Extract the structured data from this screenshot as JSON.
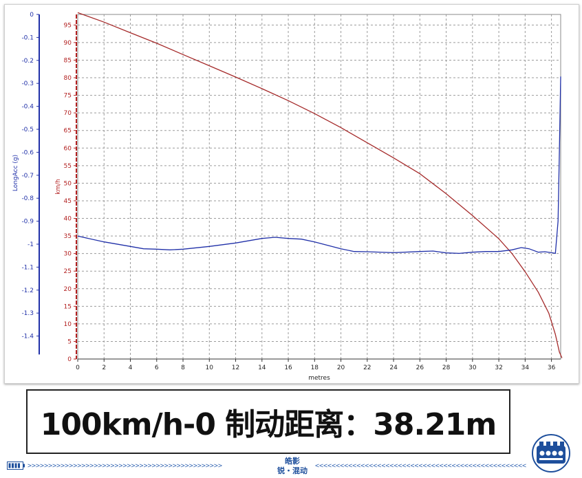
{
  "chart_data": {
    "type": "line",
    "xlabel": "metres",
    "x_ticks": [
      0,
      2,
      4,
      6,
      8,
      10,
      12,
      14,
      16,
      18,
      20,
      22,
      24,
      26,
      28,
      30,
      32,
      34,
      36
    ],
    "xlim": [
      0,
      36.7
    ],
    "left_axis": {
      "label": "LongAcc (g)",
      "ylim": [
        -1.5,
        0
      ],
      "ticks": [
        "0",
        "-0.1",
        "-0.2",
        "-0.3",
        "-0.4",
        "-0.5",
        "-0.6",
        "-0.7",
        "-0.8",
        "-0.9",
        "-1",
        "-1.1",
        "-1.2",
        "-1.3",
        "-1.4"
      ],
      "tick_values": [
        0,
        -0.1,
        -0.2,
        -0.3,
        -0.4,
        -0.5,
        -0.6,
        -0.7,
        -0.8,
        -0.9,
        -1,
        -1.1,
        -1.2,
        -1.3,
        -1.4
      ],
      "color": "#1f2fa8"
    },
    "right_axis": {
      "label": "km/h",
      "ylim": [
        0,
        98
      ],
      "ticks": [
        "0",
        "5",
        "10",
        "15",
        "20",
        "25",
        "30",
        "35",
        "40",
        "45",
        "50",
        "55",
        "60",
        "65",
        "70",
        "75",
        "80",
        "85",
        "90",
        "95"
      ],
      "tick_values": [
        0,
        5,
        10,
        15,
        20,
        25,
        30,
        35,
        40,
        45,
        50,
        55,
        60,
        65,
        70,
        75,
        80,
        85,
        90,
        95
      ],
      "color": "#b21f1f"
    },
    "grid": true,
    "series": [
      {
        "axis": "right",
        "color": "#a52a2a",
        "points": [
          [
            0,
            98.5
          ],
          [
            2,
            95.8
          ],
          [
            4,
            92.8
          ],
          [
            6,
            89.8
          ],
          [
            8,
            86.6
          ],
          [
            10,
            83.4
          ],
          [
            12,
            80.2
          ],
          [
            14,
            76.9
          ],
          [
            16,
            73.5
          ],
          [
            18,
            69.8
          ],
          [
            20,
            65.8
          ],
          [
            22,
            61.5
          ],
          [
            24,
            57.2
          ],
          [
            26,
            52.7
          ],
          [
            28,
            47
          ],
          [
            30,
            40.8
          ],
          [
            32,
            34.2
          ],
          [
            33,
            30
          ],
          [
            34,
            24.8
          ],
          [
            35,
            19
          ],
          [
            35.8,
            13
          ],
          [
            36.3,
            7
          ],
          [
            36.6,
            2
          ],
          [
            36.8,
            0.3
          ]
        ]
      },
      {
        "axis": "left",
        "color": "#1f2fa8",
        "points": [
          [
            0,
            -0.965
          ],
          [
            2,
            -0.99
          ],
          [
            4,
            -1.01
          ],
          [
            5,
            -1.02
          ],
          [
            6,
            -1.022
          ],
          [
            7,
            -1.025
          ],
          [
            8,
            -1.022
          ],
          [
            10,
            -1.01
          ],
          [
            12,
            -0.995
          ],
          [
            14,
            -0.975
          ],
          [
            15,
            -0.97
          ],
          [
            16,
            -0.975
          ],
          [
            17,
            -0.978
          ],
          [
            18,
            -0.99
          ],
          [
            19,
            -1.005
          ],
          [
            20,
            -1.02
          ],
          [
            21,
            -1.032
          ],
          [
            22,
            -1.033
          ],
          [
            24,
            -1.037
          ],
          [
            26,
            -1.032
          ],
          [
            27,
            -1.03
          ],
          [
            28,
            -1.038
          ],
          [
            29,
            -1.04
          ],
          [
            30,
            -1.035
          ],
          [
            31,
            -1.032
          ],
          [
            32,
            -1.032
          ],
          [
            33,
            -1.025
          ],
          [
            33.7,
            -1.015
          ],
          [
            34.3,
            -1.02
          ],
          [
            35,
            -1.035
          ],
          [
            35.5,
            -1.033
          ],
          [
            36,
            -1.037
          ],
          [
            36.3,
            -1.04
          ],
          [
            36.5,
            -0.9
          ],
          [
            36.6,
            -0.6
          ],
          [
            36.7,
            -0.27
          ]
        ]
      }
    ]
  },
  "result": {
    "text": "100km/h-0 制动距离：38.21m"
  },
  "footer": {
    "brand_line1": "皓影",
    "brand_line2": "锐・混动",
    "chevrons_left": ">>>>>>>>>>>>>>>>>>>>>>>>>>>>>>>>>>>>>>>>>>>>>>>",
    "chevrons_right": "<<<<<<<<<<<<<<<<<<<<<<<<<<<<<<<<<<<<<<<<<<<<<<<<<<<",
    "battery_icon": "battery-icon",
    "logo_icon": "engine-logo-icon",
    "accent_color": "#1e4f9c"
  }
}
